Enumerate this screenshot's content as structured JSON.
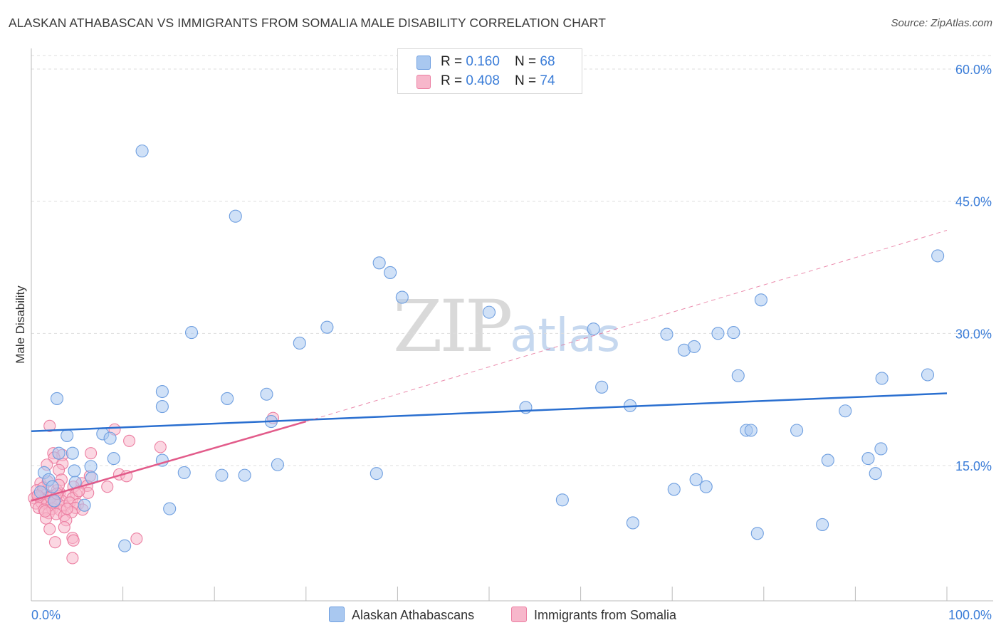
{
  "title": "ALASKAN ATHABASCAN VS IMMIGRANTS FROM SOMALIA MALE DISABILITY CORRELATION CHART",
  "source": "Source: ZipAtlas.com",
  "watermark": {
    "zip": "ZIP",
    "atlas": "atlas"
  },
  "legend": {
    "series1": {
      "r_label": "R = ",
      "r_value": "0.160",
      "n_label": "N = ",
      "n_value": "68"
    },
    "series2": {
      "r_label": "R = ",
      "r_value": "0.408",
      "n_label": "N = ",
      "n_value": "74"
    }
  },
  "colors": {
    "blue_fill": "#a9c8f0",
    "blue_stroke": "#6f9fe0",
    "blue_line": "#2a6fd0",
    "pink_fill": "#f7b7cb",
    "pink_stroke": "#ec7fa2",
    "pink_line": "#e25b8a",
    "axis_label": "#3b7dd8",
    "grid": "#dddddd"
  },
  "chart_data": {
    "type": "scatter",
    "title": "ALASKAN ATHABASCAN VS IMMIGRANTS FROM SOMALIA MALE DISABILITY CORRELATION CHART",
    "xlabel": "",
    "ylabel": "Male Disability",
    "xlim": [
      0,
      100
    ],
    "ylim": [
      0,
      60
    ],
    "x_tick_labels": [
      "0.0%",
      "100.0%"
    ],
    "y_ticks": [
      15,
      30,
      45,
      60
    ],
    "y_tick_labels": [
      "15.0%",
      "30.0%",
      "45.0%",
      "60.0%"
    ],
    "series": [
      {
        "name": "Alaskan Athabascans",
        "r": 0.16,
        "n": 68,
        "trend": {
          "x": [
            0,
            100
          ],
          "y": [
            18.9,
            23.2
          ],
          "dashed": false
        },
        "points": [
          [
            12.1,
            50.7
          ],
          [
            22.3,
            43.3
          ],
          [
            38.0,
            38.0
          ],
          [
            39.2,
            36.9
          ],
          [
            40.5,
            34.1
          ],
          [
            99.0,
            38.8
          ],
          [
            79.7,
            33.8
          ],
          [
            50.0,
            32.4
          ],
          [
            32.3,
            30.7
          ],
          [
            17.5,
            30.1
          ],
          [
            29.3,
            28.9
          ],
          [
            76.7,
            30.1
          ],
          [
            69.4,
            29.9
          ],
          [
            71.3,
            28.1
          ],
          [
            72.4,
            28.5
          ],
          [
            61.4,
            30.5
          ],
          [
            75.0,
            30.0
          ],
          [
            77.2,
            25.2
          ],
          [
            92.9,
            24.9
          ],
          [
            97.9,
            25.3
          ],
          [
            62.3,
            23.9
          ],
          [
            14.3,
            23.4
          ],
          [
            2.8,
            22.6
          ],
          [
            21.4,
            22.6
          ],
          [
            25.7,
            23.1
          ],
          [
            14.3,
            21.7
          ],
          [
            54.0,
            21.6
          ],
          [
            65.4,
            21.8
          ],
          [
            88.9,
            21.2
          ],
          [
            26.2,
            20.0
          ],
          [
            3.9,
            18.4
          ],
          [
            7.8,
            18.6
          ],
          [
            8.6,
            18.1
          ],
          [
            78.1,
            19.0
          ],
          [
            78.6,
            19.0
          ],
          [
            83.6,
            19.0
          ],
          [
            3.0,
            16.4
          ],
          [
            4.5,
            16.4
          ],
          [
            9.0,
            15.8
          ],
          [
            14.3,
            15.6
          ],
          [
            26.9,
            15.1
          ],
          [
            87.0,
            15.6
          ],
          [
            91.4,
            15.8
          ],
          [
            92.8,
            16.9
          ],
          [
            1.4,
            14.2
          ],
          [
            4.7,
            14.4
          ],
          [
            6.5,
            14.9
          ],
          [
            16.7,
            14.2
          ],
          [
            20.8,
            13.9
          ],
          [
            23.3,
            13.9
          ],
          [
            37.7,
            14.1
          ],
          [
            92.2,
            14.1
          ],
          [
            1.9,
            13.4
          ],
          [
            2.3,
            12.6
          ],
          [
            6.6,
            13.6
          ],
          [
            72.6,
            13.4
          ],
          [
            73.7,
            12.6
          ],
          [
            15.1,
            10.1
          ],
          [
            5.8,
            10.5
          ],
          [
            58.0,
            11.1
          ],
          [
            70.2,
            12.3
          ],
          [
            65.7,
            8.5
          ],
          [
            79.3,
            7.3
          ],
          [
            86.4,
            8.3
          ],
          [
            10.2,
            5.9
          ],
          [
            4.8,
            13.1
          ],
          [
            1.0,
            12.0
          ],
          [
            2.5,
            11.0
          ]
        ]
      },
      {
        "name": "Immigrants from Somalia",
        "r": 0.408,
        "n": 74,
        "trend": {
          "x": [
            0,
            30
          ],
          "y": [
            11.0,
            20.0
          ],
          "dashed": false
        },
        "trend_extension": {
          "x": [
            30,
            100
          ],
          "y": [
            20.0,
            41.7
          ],
          "dashed": true
        },
        "points": [
          [
            2.0,
            19.5
          ],
          [
            9.1,
            19.1
          ],
          [
            26.4,
            20.4
          ],
          [
            10.7,
            17.8
          ],
          [
            14.1,
            17.1
          ],
          [
            2.4,
            16.4
          ],
          [
            3.4,
            16.2
          ],
          [
            6.5,
            16.4
          ],
          [
            2.5,
            15.9
          ],
          [
            1.7,
            15.1
          ],
          [
            3.4,
            15.2
          ],
          [
            3.0,
            14.5
          ],
          [
            6.4,
            13.8
          ],
          [
            9.6,
            14.0
          ],
          [
            10.4,
            13.8
          ],
          [
            1.0,
            13.0
          ],
          [
            1.8,
            13.2
          ],
          [
            3.3,
            13.4
          ],
          [
            5.5,
            13.0
          ],
          [
            4.6,
            12.6
          ],
          [
            6.1,
            12.7
          ],
          [
            8.3,
            12.6
          ],
          [
            0.6,
            12.2
          ],
          [
            1.2,
            12.0
          ],
          [
            1.6,
            11.7
          ],
          [
            2.4,
            11.6
          ],
          [
            3.1,
            11.9
          ],
          [
            4.1,
            11.6
          ],
          [
            4.9,
            11.8
          ],
          [
            6.2,
            11.9
          ],
          [
            0.3,
            11.3
          ],
          [
            0.9,
            11.4
          ],
          [
            1.4,
            11.1
          ],
          [
            1.9,
            11.0
          ],
          [
            2.6,
            11.2
          ],
          [
            3.3,
            11.0
          ],
          [
            4.5,
            11.3
          ],
          [
            0.5,
            10.7
          ],
          [
            1.1,
            10.8
          ],
          [
            1.7,
            10.6
          ],
          [
            2.2,
            10.5
          ],
          [
            2.9,
            10.7
          ],
          [
            3.6,
            10.4
          ],
          [
            4.2,
            10.8
          ],
          [
            5.1,
            10.6
          ],
          [
            0.8,
            10.2
          ],
          [
            1.4,
            10.0
          ],
          [
            2.3,
            10.1
          ],
          [
            3.2,
            9.9
          ],
          [
            4.8,
            10.2
          ],
          [
            5.6,
            10.0
          ],
          [
            1.9,
            9.6
          ],
          [
            2.7,
            9.5
          ],
          [
            3.6,
            9.3
          ],
          [
            4.4,
            9.7
          ],
          [
            1.6,
            9.0
          ],
          [
            3.8,
            8.8
          ],
          [
            2.0,
            7.8
          ],
          [
            3.6,
            8.0
          ],
          [
            4.5,
            6.8
          ],
          [
            2.6,
            6.3
          ],
          [
            4.6,
            6.5
          ],
          [
            11.5,
            6.7
          ],
          [
            4.5,
            4.5
          ],
          [
            2.8,
            12.2
          ],
          [
            1.3,
            12.5
          ],
          [
            2.1,
            11.4
          ],
          [
            0.7,
            11.6
          ],
          [
            3.0,
            12.8
          ],
          [
            5.2,
            12.1
          ],
          [
            2.5,
            10.9
          ],
          [
            1.5,
            9.8
          ],
          [
            3.9,
            10.1
          ],
          [
            2.8,
            11.8
          ]
        ]
      }
    ],
    "legend_position": "top-center",
    "grid": true
  },
  "bottom_legend": [
    "Alaskan Athabascans",
    "Immigrants from Somalia"
  ]
}
